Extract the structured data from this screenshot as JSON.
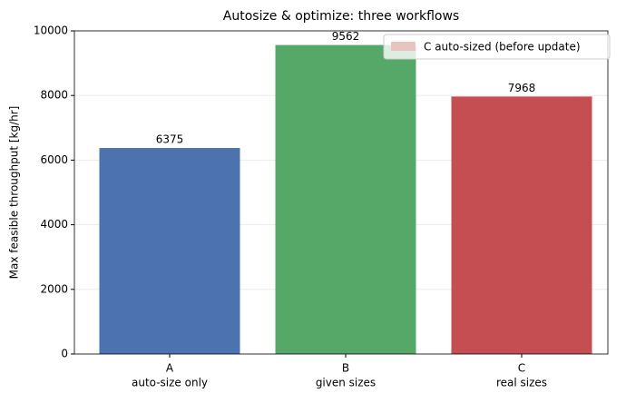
{
  "chart_data": {
    "type": "bar",
    "title": "Autosize & optimize: three workflows",
    "y_label": "Max feasible throughput [kg/hr]",
    "categories": [
      [
        "A",
        "auto-size only"
      ],
      [
        "B",
        "given sizes"
      ],
      [
        "C",
        "real sizes"
      ]
    ],
    "values": [
      6375,
      9562,
      7968
    ],
    "colors": [
      "#4c72b0",
      "#55a868",
      "#c44e52"
    ],
    "ylim": [
      0,
      10000
    ],
    "yticks": [
      0,
      2000,
      4000,
      6000,
      8000,
      10000
    ],
    "grid": true,
    "legend": [
      {
        "label": "C auto-sized (before update)",
        "color": "#e8c4c0"
      }
    ],
    "legend_position": "upper right"
  }
}
